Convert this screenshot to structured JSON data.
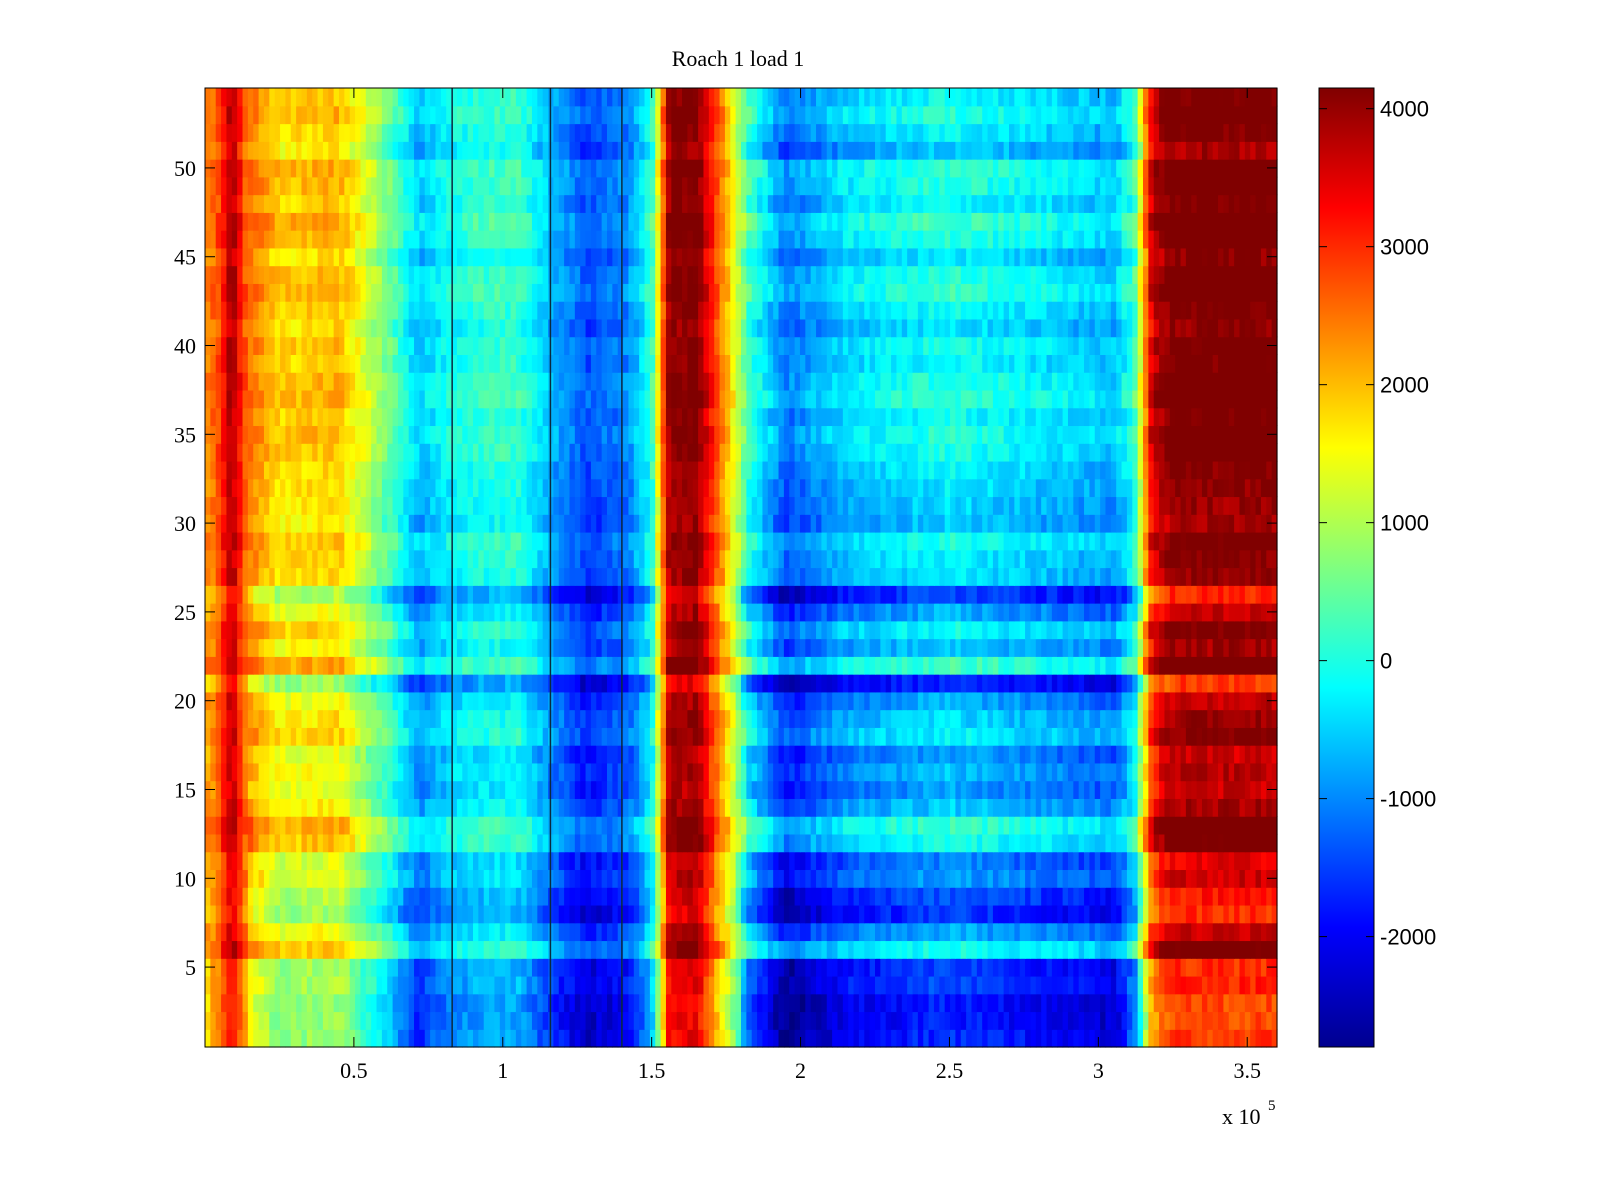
{
  "chart_data": {
    "type": "heatmap",
    "title": "Roach 1 load 1",
    "xlabel": "",
    "ylabel": "",
    "x_range": [
      0,
      360000
    ],
    "y_range": [
      0.5,
      54.5
    ],
    "n_rows": 54,
    "x_ticks": [
      50000,
      100000,
      150000,
      200000,
      250000,
      300000,
      350000
    ],
    "x_tick_labels": [
      "0.5",
      "1",
      "1.5",
      "2",
      "2.5",
      "3",
      "3.5"
    ],
    "x_exponent_label": "x 10",
    "x_exponent": "5",
    "y_ticks": [
      5,
      10,
      15,
      20,
      25,
      30,
      35,
      40,
      45,
      50
    ],
    "y_tick_labels": [
      "5",
      "10",
      "15",
      "20",
      "25",
      "30",
      "35",
      "40",
      "45",
      "50"
    ],
    "colormap": "jet",
    "color_range": [
      -2800,
      4150
    ],
    "colorbar_ticks": [
      -2000,
      -1000,
      0,
      1000,
      2000,
      3000,
      4000
    ],
    "colorbar_tick_labels": [
      "-2000",
      "-1000",
      "0",
      "1000",
      "2000",
      "3000",
      "4000"
    ],
    "grid": false,
    "column_profile": {
      "x": [
        0,
        5000,
        9000,
        14000,
        25000,
        45000,
        62000,
        72000,
        82000,
        92000,
        105000,
        118000,
        128000,
        142000,
        150000,
        156000,
        165000,
        176000,
        183000,
        195000,
        215000,
        250000,
        290000,
        305000,
        312000,
        318000,
        325000,
        340000,
        360000
      ],
      "value": [
        2200,
        2800,
        3900,
        2500,
        1700,
        1900,
        400,
        -700,
        -200,
        0,
        100,
        -900,
        -1500,
        -1100,
        0,
        4000,
        4150,
        1800,
        0,
        -1300,
        -600,
        -200,
        -600,
        -800,
        0,
        3500,
        4150,
        4150,
        4150
      ]
    },
    "row_offsets": [
      -1400,
      -1500,
      -1500,
      -1200,
      -1300,
      200,
      -500,
      -1300,
      -1100,
      -600,
      -800,
      200,
      400,
      -300,
      -600,
      -400,
      -600,
      0,
      -200,
      -500,
      -1400,
      500,
      -300,
      100,
      -500,
      -1200,
      -100,
      0,
      200,
      -300,
      -200,
      -100,
      0,
      200,
      300,
      100,
      400,
      300,
      100,
      200,
      -100,
      100,
      400,
      300,
      -100,
      300,
      500,
      100,
      300,
      400,
      -300,
      0,
      300,
      100
    ],
    "dark_vertical_lines_x": [
      83000,
      116000,
      140000
    ]
  }
}
